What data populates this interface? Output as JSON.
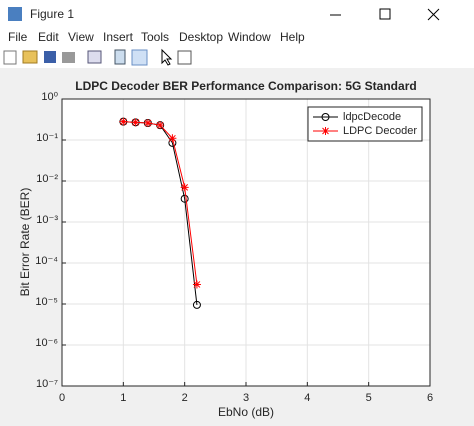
{
  "window": {
    "title": "Figure 1",
    "menu": [
      "File",
      "Edit",
      "View",
      "Insert",
      "Tools",
      "Desktop",
      "Window",
      "Help"
    ]
  },
  "chart_data": {
    "type": "line",
    "title": "LDPC Decoder BER Performance Comparison: 5G Standard",
    "xlabel": "EbNo (dB)",
    "ylabel": "Bit Error Rate (BER)",
    "x": [
      1,
      1.2,
      1.4,
      1.6,
      1.8,
      2,
      2.2
    ],
    "series": [
      {
        "name": "ldpcDecode",
        "color": "#000000",
        "marker": "o",
        "values": [
          0.28,
          0.27,
          0.26,
          0.23,
          0.085,
          0.0037,
          9.5e-06
        ]
      },
      {
        "name": "LDPC Decoder",
        "color": "#ff0000",
        "marker": "*",
        "values": [
          0.28,
          0.27,
          0.26,
          0.23,
          0.11,
          0.007,
          3e-05
        ]
      }
    ],
    "xlim": [
      0,
      6
    ],
    "xticks": [
      0,
      1,
      2,
      3,
      4,
      5,
      6
    ],
    "ylim": [
      1e-07,
      1
    ],
    "yscale": "log",
    "yticks": [
      {
        "value": 1e-07,
        "label": "10⁻⁷"
      },
      {
        "value": 1e-06,
        "label": "10⁻⁶"
      },
      {
        "value": 1e-05,
        "label": "10⁻⁵"
      },
      {
        "value": 0.0001,
        "label": "10⁻⁴"
      },
      {
        "value": 0.001,
        "label": "10⁻³"
      },
      {
        "value": 0.01,
        "label": "10⁻²"
      },
      {
        "value": 0.1,
        "label": "10⁻¹"
      },
      {
        "value": 1,
        "label": "10⁰"
      }
    ],
    "grid": true,
    "legend": "northeast"
  }
}
